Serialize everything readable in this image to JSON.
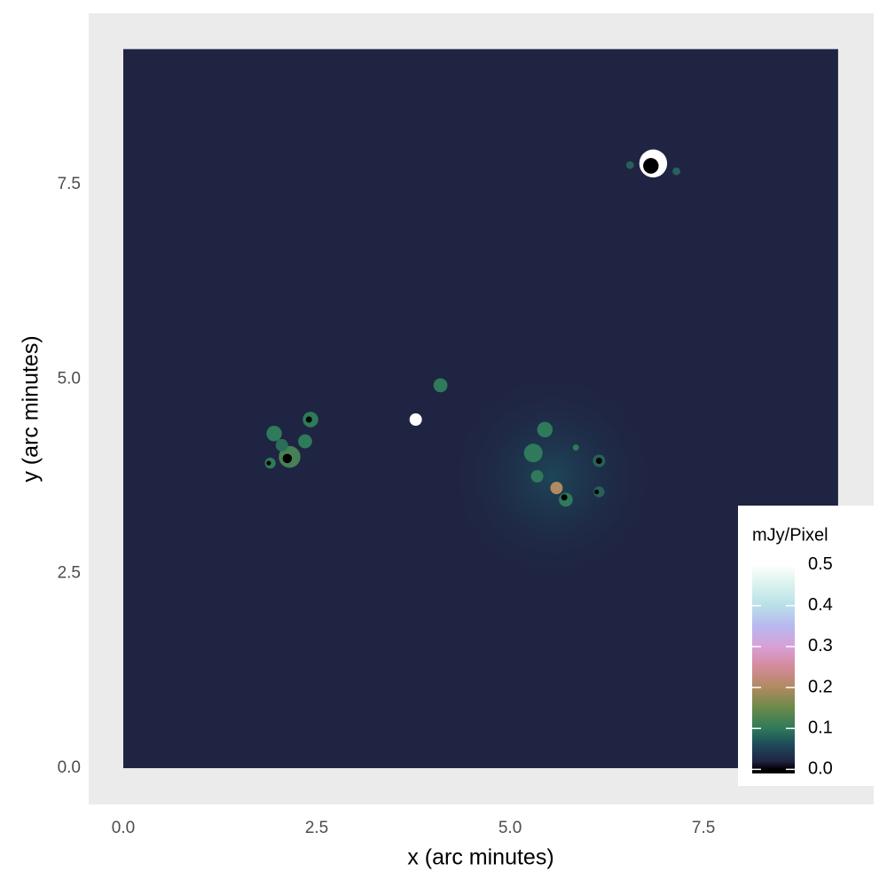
{
  "chart_data": {
    "type": "raster",
    "x_label": "x (arc minutes)",
    "y_label": "y (arc minutes)",
    "xlim": [
      -0.447,
      9.7
    ],
    "ylim": [
      -0.467,
      9.7
    ],
    "xticks": [
      {
        "value": 0,
        "label": "0.0"
      },
      2.5,
      {
        "value": 5,
        "label": "5.0"
      },
      7.5
    ],
    "yticks": [
      {
        "value": 0,
        "label": "0.0"
      },
      2.5,
      {
        "value": 5,
        "label": "5.0"
      },
      7.5
    ],
    "grid": true,
    "minor_grid": true,
    "extent": {
      "x": [
        0,
        9.24
      ],
      "y": [
        0,
        9.24
      ]
    },
    "background_value": 0.02,
    "glow": {
      "x": 5.55,
      "y": 3.75,
      "value": 0.06,
      "size": 1.4
    },
    "sources": [
      {
        "x": 6.85,
        "y": 7.77,
        "value": 0.5,
        "size": 0.18
      },
      {
        "x": 6.82,
        "y": 7.74,
        "value": 0,
        "size": 0.1
      },
      {
        "x": 6.55,
        "y": 7.75,
        "value": 0.08,
        "size": 0.05
      },
      {
        "x": 7.15,
        "y": 7.67,
        "value": 0.08,
        "size": 0.05
      },
      {
        "x": 3.78,
        "y": 4.48,
        "value": 0.5,
        "size": 0.08
      },
      {
        "x": 4.1,
        "y": 4.92,
        "value": 0.1,
        "size": 0.09
      },
      {
        "x": 1.95,
        "y": 4.3,
        "value": 0.1,
        "size": 0.1
      },
      {
        "x": 2.15,
        "y": 4.0,
        "value": 0.12,
        "size": 0.14
      },
      {
        "x": 2.12,
        "y": 3.98,
        "value": 0,
        "size": 0.06
      },
      {
        "x": 2.42,
        "y": 4.48,
        "value": 0.1,
        "size": 0.1
      },
      {
        "x": 2.4,
        "y": 4.48,
        "value": 0,
        "size": 0.04
      },
      {
        "x": 2.35,
        "y": 4.2,
        "value": 0.1,
        "size": 0.09
      },
      {
        "x": 1.9,
        "y": 3.92,
        "value": 0.1,
        "size": 0.07
      },
      {
        "x": 1.88,
        "y": 3.92,
        "value": 0,
        "size": 0.03
      },
      {
        "x": 2.05,
        "y": 4.15,
        "value": 0.09,
        "size": 0.08
      },
      {
        "x": 5.3,
        "y": 4.05,
        "value": 0.1,
        "size": 0.12
      },
      {
        "x": 5.45,
        "y": 4.35,
        "value": 0.1,
        "size": 0.1
      },
      {
        "x": 5.35,
        "y": 3.75,
        "value": 0.1,
        "size": 0.08
      },
      {
        "x": 5.6,
        "y": 3.6,
        "value": 0.2,
        "size": 0.08
      },
      {
        "x": 5.72,
        "y": 3.45,
        "value": 0.1,
        "size": 0.09
      },
      {
        "x": 5.7,
        "y": 3.48,
        "value": 0,
        "size": 0.04
      },
      {
        "x": 5.85,
        "y": 4.12,
        "value": 0.1,
        "size": 0.04
      },
      {
        "x": 6.15,
        "y": 3.95,
        "value": 0.08,
        "size": 0.08
      },
      {
        "x": 6.15,
        "y": 3.95,
        "value": 0,
        "size": 0.04
      },
      {
        "x": 6.15,
        "y": 3.55,
        "value": 0.08,
        "size": 0.07
      },
      {
        "x": 6.12,
        "y": 3.55,
        "value": 0,
        "size": 0.03
      }
    ],
    "legend_title": "mJy/Pixel",
    "legend_position": "right",
    "colorbar_lim": [
      -0.01,
      0.51
    ],
    "colorbar_ticks": [
      {
        "value": 0,
        "label": "0.0"
      },
      0.1,
      0.2,
      0.3,
      0.4,
      0.5
    ],
    "colormap": [
      {
        "value": 0,
        "color": "#000000"
      },
      {
        "value": 0.02,
        "color": "#1f2442"
      },
      {
        "value": 0.06,
        "color": "#1d4a5a"
      },
      {
        "value": 0.1,
        "color": "#2e7a5a"
      },
      {
        "value": 0.15,
        "color": "#6a8a4a"
      },
      {
        "value": 0.2,
        "color": "#b08a60"
      },
      {
        "value": 0.25,
        "color": "#d48a9a"
      },
      {
        "value": 0.3,
        "color": "#d8a0d8"
      },
      {
        "value": 0.35,
        "color": "#b8b8f0"
      },
      {
        "value": 0.4,
        "color": "#b8e0e8"
      },
      {
        "value": 0.45,
        "color": "#d8f2ec"
      },
      {
        "value": 0.5,
        "color": "#ffffff"
      }
    ]
  }
}
